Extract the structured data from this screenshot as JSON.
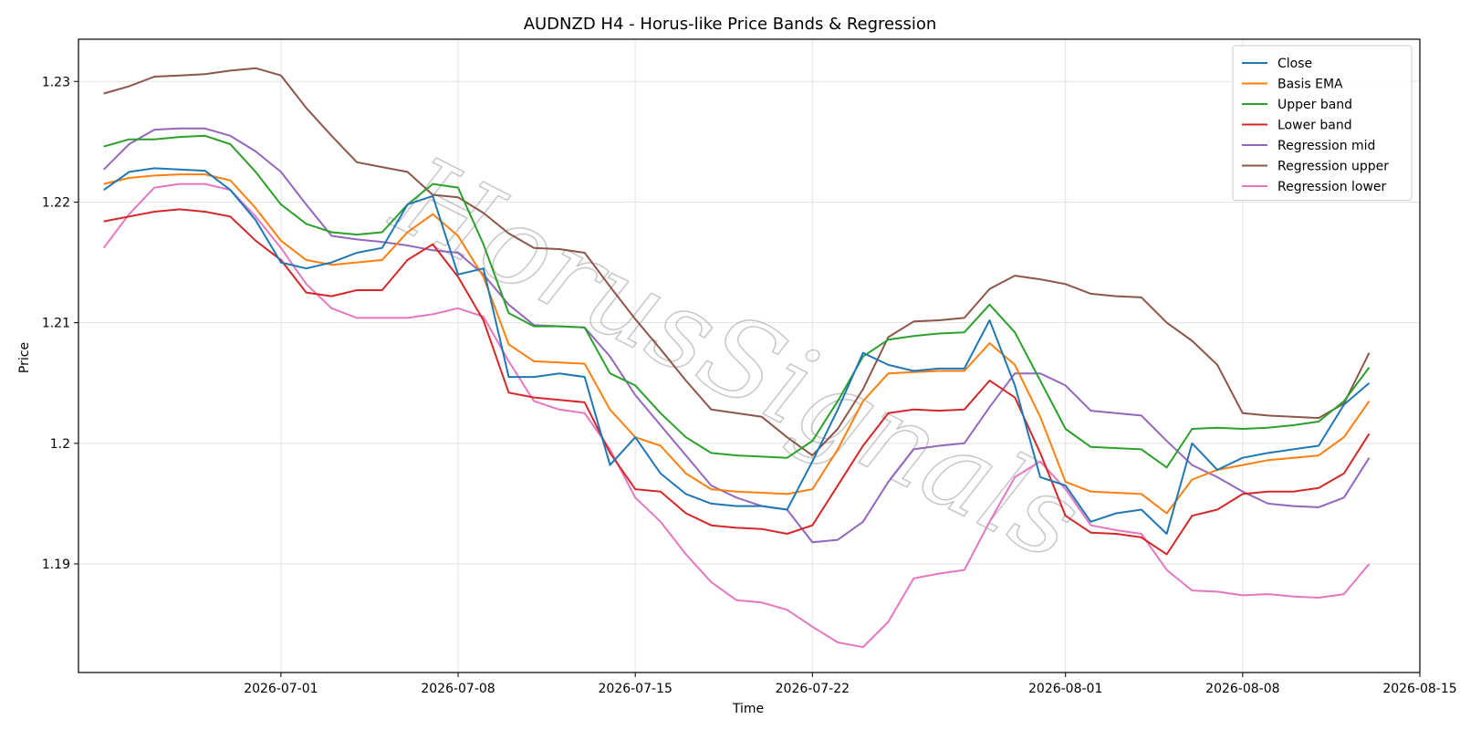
{
  "chart_data": {
    "type": "line",
    "title": "AUDNZD H4 - Horus-like Price Bands & Regression",
    "xlabel": "Time",
    "ylabel": "Price",
    "x_axis": "date",
    "xlim": [
      "2026-06-23",
      "2026-08-15"
    ],
    "ylim": [
      1.181,
      1.2335
    ],
    "x_ticks": [
      "2026-07-01",
      "2026-07-08",
      "2026-07-15",
      "2026-07-22",
      "2026-08-01",
      "2026-08-08",
      "2026-08-15"
    ],
    "y_ticks": [
      1.19,
      1.2,
      1.21,
      1.22,
      1.23
    ],
    "grid": true,
    "legend_position": "top-right",
    "watermark": "HorusSignals",
    "series": [
      {
        "name": "Close",
        "color": "#1f77b4",
        "x": [
          "2026-06-24",
          "2026-06-25",
          "2026-06-26",
          "2026-06-27",
          "2026-06-28",
          "2026-06-29",
          "2026-06-30",
          "2026-07-01",
          "2026-07-02",
          "2026-07-03",
          "2026-07-04",
          "2026-07-05",
          "2026-07-06",
          "2026-07-07",
          "2026-07-08",
          "2026-07-09",
          "2026-07-10",
          "2026-07-11",
          "2026-07-12",
          "2026-07-13",
          "2026-07-14",
          "2026-07-15",
          "2026-07-16",
          "2026-07-17",
          "2026-07-18",
          "2026-07-19",
          "2026-07-20",
          "2026-07-21",
          "2026-07-22",
          "2026-07-23",
          "2026-07-24",
          "2026-07-25",
          "2026-07-26",
          "2026-07-27",
          "2026-07-28",
          "2026-07-29",
          "2026-07-30",
          "2026-07-31",
          "2026-08-01",
          "2026-08-02",
          "2026-08-03",
          "2026-08-04",
          "2026-08-05",
          "2026-08-06",
          "2026-08-07",
          "2026-08-08",
          "2026-08-09",
          "2026-08-10",
          "2026-08-11",
          "2026-08-12",
          "2026-08-13"
        ],
        "y": [
          1.221,
          1.2225,
          1.2228,
          1.2227,
          1.2226,
          1.221,
          1.2185,
          1.215,
          1.2145,
          1.215,
          1.2158,
          1.2162,
          1.2198,
          1.2205,
          1.214,
          1.2145,
          1.2055,
          1.2055,
          1.2058,
          1.2055,
          1.1982,
          1.2005,
          1.1975,
          1.1958,
          1.195,
          1.1948,
          1.1948,
          1.1945,
          1.1985,
          1.2028,
          1.2075,
          1.2065,
          1.206,
          1.2062,
          1.2062,
          1.2102,
          1.2048,
          1.1972,
          1.1965,
          1.1935,
          1.1942,
          1.1945,
          1.1925,
          1.2,
          1.1978,
          1.1988,
          1.1992,
          1.1995,
          1.1998,
          1.2032,
          1.205
        ]
      },
      {
        "name": "Basis EMA",
        "color": "#ff7f0e",
        "x": [
          "2026-06-24",
          "2026-06-25",
          "2026-06-26",
          "2026-06-27",
          "2026-06-28",
          "2026-06-29",
          "2026-06-30",
          "2026-07-01",
          "2026-07-02",
          "2026-07-03",
          "2026-07-04",
          "2026-07-05",
          "2026-07-06",
          "2026-07-07",
          "2026-07-08",
          "2026-07-09",
          "2026-07-10",
          "2026-07-11",
          "2026-07-12",
          "2026-07-13",
          "2026-07-14",
          "2026-07-15",
          "2026-07-16",
          "2026-07-17",
          "2026-07-18",
          "2026-07-19",
          "2026-07-20",
          "2026-07-21",
          "2026-07-22",
          "2026-07-23",
          "2026-07-24",
          "2026-07-25",
          "2026-07-26",
          "2026-07-27",
          "2026-07-28",
          "2026-07-29",
          "2026-07-30",
          "2026-07-31",
          "2026-08-01",
          "2026-08-02",
          "2026-08-03",
          "2026-08-04",
          "2026-08-05",
          "2026-08-06",
          "2026-08-07",
          "2026-08-08",
          "2026-08-09",
          "2026-08-10",
          "2026-08-11",
          "2026-08-12",
          "2026-08-13"
        ],
        "y": [
          1.2215,
          1.222,
          1.2222,
          1.2223,
          1.2223,
          1.2218,
          1.2195,
          1.2168,
          1.2152,
          1.2148,
          1.215,
          1.2152,
          1.2175,
          1.219,
          1.2172,
          1.2138,
          1.2082,
          1.2068,
          1.2067,
          1.2066,
          1.2028,
          1.2005,
          1.1998,
          1.1975,
          1.1962,
          1.196,
          1.1959,
          1.1958,
          1.1962,
          1.1995,
          1.2035,
          1.2058,
          1.2059,
          1.206,
          1.206,
          1.2083,
          1.2065,
          1.2022,
          1.1968,
          1.196,
          1.1959,
          1.1958,
          1.1942,
          1.197,
          1.1978,
          1.1982,
          1.1986,
          1.1988,
          1.199,
          1.2005,
          1.2035
        ]
      },
      {
        "name": "Upper band",
        "color": "#2ca02c",
        "x": [
          "2026-06-24",
          "2026-06-25",
          "2026-06-26",
          "2026-06-27",
          "2026-06-28",
          "2026-06-29",
          "2026-06-30",
          "2026-07-01",
          "2026-07-02",
          "2026-07-03",
          "2026-07-04",
          "2026-07-05",
          "2026-07-06",
          "2026-07-07",
          "2026-07-08",
          "2026-07-09",
          "2026-07-10",
          "2026-07-11",
          "2026-07-12",
          "2026-07-13",
          "2026-07-14",
          "2026-07-15",
          "2026-07-16",
          "2026-07-17",
          "2026-07-18",
          "2026-07-19",
          "2026-07-20",
          "2026-07-21",
          "2026-07-22",
          "2026-07-23",
          "2026-07-24",
          "2026-07-25",
          "2026-07-26",
          "2026-07-27",
          "2026-07-28",
          "2026-07-29",
          "2026-07-30",
          "2026-07-31",
          "2026-08-01",
          "2026-08-02",
          "2026-08-03",
          "2026-08-04",
          "2026-08-05",
          "2026-08-06",
          "2026-08-07",
          "2026-08-08",
          "2026-08-09",
          "2026-08-10",
          "2026-08-11",
          "2026-08-12",
          "2026-08-13"
        ],
        "y": [
          1.2246,
          1.2252,
          1.2252,
          1.2254,
          1.2255,
          1.2248,
          1.2225,
          1.2198,
          1.2182,
          1.2175,
          1.2173,
          1.2175,
          1.2198,
          1.2215,
          1.2212,
          1.2165,
          1.2108,
          1.2097,
          1.2097,
          1.2096,
          1.2058,
          1.2048,
          1.2025,
          1.2005,
          1.1992,
          1.199,
          1.1989,
          1.1988,
          1.2002,
          1.2035,
          1.2072,
          1.2086,
          1.2089,
          1.2091,
          1.2092,
          1.2115,
          1.2092,
          1.2052,
          1.2012,
          1.1997,
          1.1996,
          1.1995,
          1.198,
          1.2012,
          1.2013,
          1.2012,
          1.2013,
          1.2015,
          1.2018,
          1.2035,
          1.2063
        ]
      },
      {
        "name": "Lower band",
        "color": "#d62728",
        "x": [
          "2026-06-24",
          "2026-06-25",
          "2026-06-26",
          "2026-06-27",
          "2026-06-28",
          "2026-06-29",
          "2026-06-30",
          "2026-07-01",
          "2026-07-02",
          "2026-07-03",
          "2026-07-04",
          "2026-07-05",
          "2026-07-06",
          "2026-07-07",
          "2026-07-08",
          "2026-07-09",
          "2026-07-10",
          "2026-07-11",
          "2026-07-12",
          "2026-07-13",
          "2026-07-14",
          "2026-07-15",
          "2026-07-16",
          "2026-07-17",
          "2026-07-18",
          "2026-07-19",
          "2026-07-20",
          "2026-07-21",
          "2026-07-22",
          "2026-07-23",
          "2026-07-24",
          "2026-07-25",
          "2026-07-26",
          "2026-07-27",
          "2026-07-28",
          "2026-07-29",
          "2026-07-30",
          "2026-07-31",
          "2026-08-01",
          "2026-08-02",
          "2026-08-03",
          "2026-08-04",
          "2026-08-05",
          "2026-08-06",
          "2026-08-07",
          "2026-08-08",
          "2026-08-09",
          "2026-08-10",
          "2026-08-11",
          "2026-08-12",
          "2026-08-13"
        ],
        "y": [
          1.2184,
          1.2188,
          1.2192,
          1.2194,
          1.2192,
          1.2188,
          1.2168,
          1.2152,
          1.2125,
          1.2122,
          1.2127,
          1.2127,
          1.2152,
          1.2165,
          1.2138,
          1.2102,
          1.2042,
          1.2038,
          1.2036,
          1.2034,
          1.1992,
          1.1962,
          1.196,
          1.1942,
          1.1932,
          1.193,
          1.1929,
          1.1925,
          1.1932,
          1.1965,
          1.1998,
          1.2025,
          1.2028,
          1.2027,
          1.2028,
          1.2052,
          1.2038,
          1.1992,
          1.194,
          1.1926,
          1.1925,
          1.1922,
          1.1908,
          1.194,
          1.1945,
          1.1958,
          1.196,
          1.196,
          1.1963,
          1.1975,
          1.2008
        ]
      },
      {
        "name": "Regression mid",
        "color": "#9467bd",
        "x": [
          "2026-06-24",
          "2026-06-25",
          "2026-06-26",
          "2026-06-27",
          "2026-06-28",
          "2026-06-29",
          "2026-06-30",
          "2026-07-01",
          "2026-07-02",
          "2026-07-03",
          "2026-07-04",
          "2026-07-05",
          "2026-07-06",
          "2026-07-07",
          "2026-07-08",
          "2026-07-09",
          "2026-07-10",
          "2026-07-11",
          "2026-07-12",
          "2026-07-13",
          "2026-07-14",
          "2026-07-15",
          "2026-07-16",
          "2026-07-17",
          "2026-07-18",
          "2026-07-19",
          "2026-07-20",
          "2026-07-21",
          "2026-07-22",
          "2026-07-23",
          "2026-07-24",
          "2026-07-25",
          "2026-07-26",
          "2026-07-27",
          "2026-07-28",
          "2026-07-29",
          "2026-07-30",
          "2026-07-31",
          "2026-08-01",
          "2026-08-02",
          "2026-08-03",
          "2026-08-04",
          "2026-08-05",
          "2026-08-06",
          "2026-08-07",
          "2026-08-08",
          "2026-08-09",
          "2026-08-10",
          "2026-08-11",
          "2026-08-12",
          "2026-08-13"
        ],
        "y": [
          1.2227,
          1.2248,
          1.226,
          1.2261,
          1.2261,
          1.2255,
          1.2242,
          1.2225,
          1.2198,
          1.2172,
          1.2169,
          1.2167,
          1.2164,
          1.216,
          1.2158,
          1.214,
          1.2115,
          1.2098,
          1.2097,
          1.2096,
          1.2072,
          1.204,
          1.2015,
          1.199,
          1.1965,
          1.1955,
          1.1948,
          1.1945,
          1.1918,
          1.192,
          1.1935,
          1.1968,
          1.1995,
          1.1998,
          1.2,
          1.203,
          1.2058,
          1.2058,
          1.2048,
          1.2027,
          1.2025,
          1.2023,
          1.2002,
          1.1982,
          1.1972,
          1.196,
          1.195,
          1.1948,
          1.1947,
          1.1955,
          1.1988
        ]
      },
      {
        "name": "Regression upper",
        "color": "#8c564b",
        "x": [
          "2026-06-24",
          "2026-06-25",
          "2026-06-26",
          "2026-06-27",
          "2026-06-28",
          "2026-06-29",
          "2026-06-30",
          "2026-07-01",
          "2026-07-02",
          "2026-07-03",
          "2026-07-04",
          "2026-07-05",
          "2026-07-06",
          "2026-07-07",
          "2026-07-08",
          "2026-07-09",
          "2026-07-10",
          "2026-07-11",
          "2026-07-12",
          "2026-07-13",
          "2026-07-14",
          "2026-07-15",
          "2026-07-16",
          "2026-07-17",
          "2026-07-18",
          "2026-07-19",
          "2026-07-20",
          "2026-07-21",
          "2026-07-22",
          "2026-07-23",
          "2026-07-24",
          "2026-07-25",
          "2026-07-26",
          "2026-07-27",
          "2026-07-28",
          "2026-07-29",
          "2026-07-30",
          "2026-07-31",
          "2026-08-01",
          "2026-08-02",
          "2026-08-03",
          "2026-08-04",
          "2026-08-05",
          "2026-08-06",
          "2026-08-07",
          "2026-08-08",
          "2026-08-09",
          "2026-08-10",
          "2026-08-11",
          "2026-08-12",
          "2026-08-13"
        ],
        "y": [
          1.229,
          1.2296,
          1.2304,
          1.2305,
          1.2306,
          1.2309,
          1.2311,
          1.2305,
          1.2278,
          1.2255,
          1.2233,
          1.2229,
          1.2225,
          1.2206,
          1.2204,
          1.2191,
          1.2174,
          1.2162,
          1.2161,
          1.2158,
          1.213,
          1.2103,
          1.2078,
          1.2052,
          1.2028,
          1.2025,
          1.2022,
          1.2005,
          1.199,
          1.2012,
          1.2045,
          1.2088,
          1.2101,
          1.2102,
          1.2104,
          1.2128,
          1.2139,
          1.2136,
          1.2132,
          1.2124,
          1.2122,
          1.2121,
          1.21,
          1.2085,
          1.2065,
          1.2025,
          1.2023,
          1.2022,
          1.2021,
          1.2033,
          1.2075
        ]
      },
      {
        "name": "Regression lower",
        "color": "#e377c2",
        "x": [
          "2026-06-24",
          "2026-06-25",
          "2026-06-26",
          "2026-06-27",
          "2026-06-28",
          "2026-06-29",
          "2026-06-30",
          "2026-07-01",
          "2026-07-02",
          "2026-07-03",
          "2026-07-04",
          "2026-07-05",
          "2026-07-06",
          "2026-07-07",
          "2026-07-08",
          "2026-07-09",
          "2026-07-10",
          "2026-07-11",
          "2026-07-12",
          "2026-07-13",
          "2026-07-14",
          "2026-07-15",
          "2026-07-16",
          "2026-07-17",
          "2026-07-18",
          "2026-07-19",
          "2026-07-20",
          "2026-07-21",
          "2026-07-22",
          "2026-07-23",
          "2026-07-24",
          "2026-07-25",
          "2026-07-26",
          "2026-07-27",
          "2026-07-28",
          "2026-07-29",
          "2026-07-30",
          "2026-07-31",
          "2026-08-01",
          "2026-08-02",
          "2026-08-03",
          "2026-08-04",
          "2026-08-05",
          "2026-08-06",
          "2026-08-07",
          "2026-08-08",
          "2026-08-09",
          "2026-08-10",
          "2026-08-11",
          "2026-08-12",
          "2026-08-13"
        ],
        "y": [
          1.2162,
          1.219,
          1.2212,
          1.2215,
          1.2215,
          1.221,
          1.2188,
          1.2162,
          1.2132,
          1.2112,
          1.2104,
          1.2104,
          1.2104,
          1.2107,
          1.2112,
          1.2105,
          1.2068,
          1.2035,
          1.2028,
          1.2025,
          1.1995,
          1.1955,
          1.1935,
          1.1908,
          1.1885,
          1.187,
          1.1868,
          1.1862,
          1.1848,
          1.1835,
          1.1831,
          1.1852,
          1.1888,
          1.1892,
          1.1895,
          1.1935,
          1.1972,
          1.1985,
          1.1962,
          1.1932,
          1.1928,
          1.1925,
          1.1895,
          1.1878,
          1.1877,
          1.1874,
          1.1875,
          1.1873,
          1.1872,
          1.1875,
          1.19
        ]
      }
    ]
  }
}
